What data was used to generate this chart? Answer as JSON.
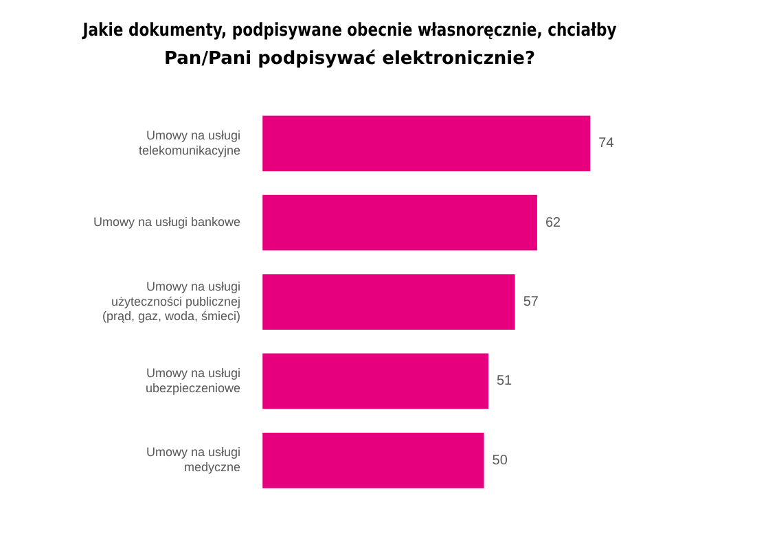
{
  "chart_data": {
    "type": "bar",
    "orientation": "horizontal",
    "title": "Jakie dokumenty, podpisywane obecnie własnoręcznie, chciałby Pan/Pani podpisywać elektronicznie?",
    "categories": [
      "Umowy na usługi telekomunikacyjne",
      "Umowy na usługi bankowe",
      "Umowy na usługi użyteczności publicznej (prąd, gaz, woda, śmieci)",
      "Umowy na usługi ubezpieczeniowe",
      "Umowy na usługi medyczne"
    ],
    "values": [
      74,
      62,
      57,
      51,
      50
    ],
    "color": "#e6007e",
    "data_labels": true
  }
}
